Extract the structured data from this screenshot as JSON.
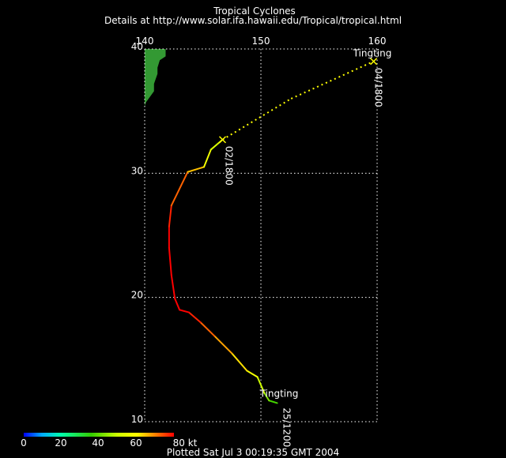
{
  "header": {
    "title": "Tropical Cyclones",
    "details": "Details at http://www.solar.ifa.hawaii.edu/Tropical/tropical.html"
  },
  "map": {
    "lon_range": [
      140,
      160
    ],
    "lat_range": [
      10,
      40
    ],
    "lon_ticks": [
      "140",
      "150",
      "160"
    ],
    "lat_ticks": [
      "40",
      "30",
      "20",
      "10"
    ],
    "grid": "dotted",
    "land_color": "#339933"
  },
  "storm": {
    "name_start": "Tingting",
    "name_end": "Tingting",
    "label_start": "25/1200",
    "label_mid": "02/1800",
    "label_end": "04/1800",
    "track": [
      {
        "lon": 151.4,
        "lat": 11.5,
        "kt": 35
      },
      {
        "lon": 150.7,
        "lat": 11.7,
        "kt": 40
      },
      {
        "lon": 150.3,
        "lat": 12.3,
        "kt": 45
      },
      {
        "lon": 149.7,
        "lat": 13.6,
        "kt": 55
      },
      {
        "lon": 148.8,
        "lat": 14.1,
        "kt": 60
      },
      {
        "lon": 147.5,
        "lat": 15.5,
        "kt": 65
      },
      {
        "lon": 146.0,
        "lat": 16.9,
        "kt": 70
      },
      {
        "lon": 144.8,
        "lat": 18.0,
        "kt": 75
      },
      {
        "lon": 143.8,
        "lat": 18.8,
        "kt": 80
      },
      {
        "lon": 143.0,
        "lat": 19.0,
        "kt": 80
      },
      {
        "lon": 142.6,
        "lat": 19.9,
        "kt": 80
      },
      {
        "lon": 142.3,
        "lat": 21.8,
        "kt": 80
      },
      {
        "lon": 142.1,
        "lat": 24.0,
        "kt": 80
      },
      {
        "lon": 142.1,
        "lat": 25.7,
        "kt": 80
      },
      {
        "lon": 142.3,
        "lat": 27.4,
        "kt": 75
      },
      {
        "lon": 143.7,
        "lat": 30.1,
        "kt": 70
      },
      {
        "lon": 145.1,
        "lat": 30.5,
        "kt": 60
      },
      {
        "lon": 145.7,
        "lat": 31.9,
        "kt": 55
      },
      {
        "lon": 146.7,
        "lat": 32.7,
        "kt": 50
      }
    ],
    "extratropical": [
      {
        "lon": 146.7,
        "lat": 32.7
      },
      {
        "lon": 152.6,
        "lat": 36.0
      },
      {
        "lon": 159.7,
        "lat": 39.0
      }
    ]
  },
  "legend": {
    "ticks": [
      "0",
      "20",
      "40",
      "60",
      "80 kt"
    ],
    "min": 0,
    "max": 80
  },
  "footer": {
    "plotted": "Plotted Sat Jul 3 00:19:35 GMT 2004"
  }
}
